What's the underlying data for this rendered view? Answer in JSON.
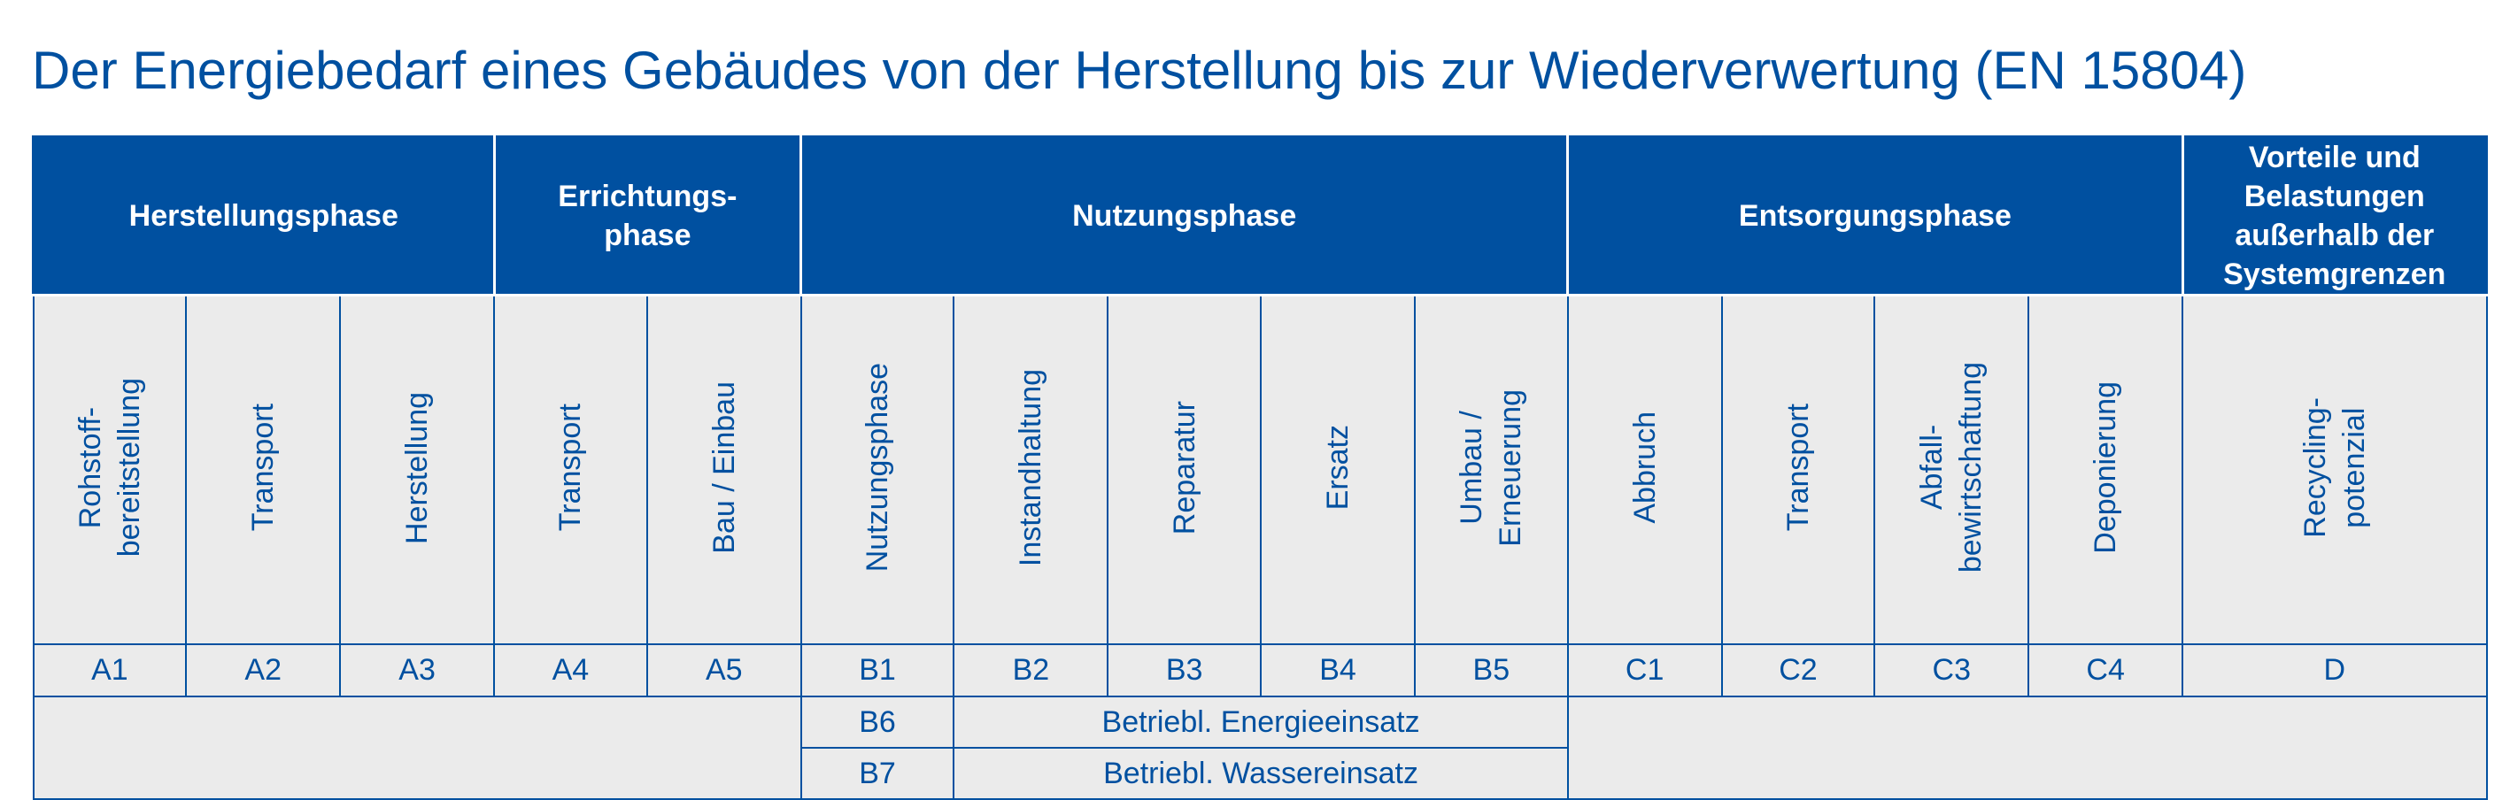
{
  "title": "Der Energiebedarf eines Gebäudes von der Herstellung bis zur Wiederverwertung (EN 15804)",
  "colors": {
    "primary": "#0050a0",
    "cell_bg": "#ebebeb",
    "header_text": "#ffffff"
  },
  "phases": [
    "Herstellungsphase",
    "Errichtungs-\nphase",
    "Nutzungsphase",
    "Entsorgungsphase",
    "Vorteile und Belastungen\naußerhalb der Systemgrenzen"
  ],
  "modules": [
    {
      "name": "Rohstoff-\nbereitstellung",
      "code": "A1"
    },
    {
      "name": "Transport",
      "code": "A2"
    },
    {
      "name": "Herstellung",
      "code": "A3"
    },
    {
      "name": "Transport",
      "code": "A4"
    },
    {
      "name": "Bau / Einbau",
      "code": "A5"
    },
    {
      "name": "Nutzungsphase",
      "code": "B1"
    },
    {
      "name": "Instandhaltung",
      "code": "B2"
    },
    {
      "name": "Reparatur",
      "code": "B3"
    },
    {
      "name": "Ersatz",
      "code": "B4"
    },
    {
      "name": "Umbau /\nErneuerung",
      "code": "B5"
    },
    {
      "name": "Abbruch",
      "code": "C1"
    },
    {
      "name": "Transport",
      "code": "C2"
    },
    {
      "name": "Abfall-\nbewirtschaftung",
      "code": "C3"
    },
    {
      "name": "Deponierung",
      "code": "C4"
    },
    {
      "name": "Recycling-\npotenzial",
      "code": "D"
    }
  ],
  "operational": [
    {
      "code": "B6",
      "label": "Betriebl. Energieeinsatz"
    },
    {
      "code": "B7",
      "label": "Betriebl. Wassereinsatz"
    }
  ]
}
